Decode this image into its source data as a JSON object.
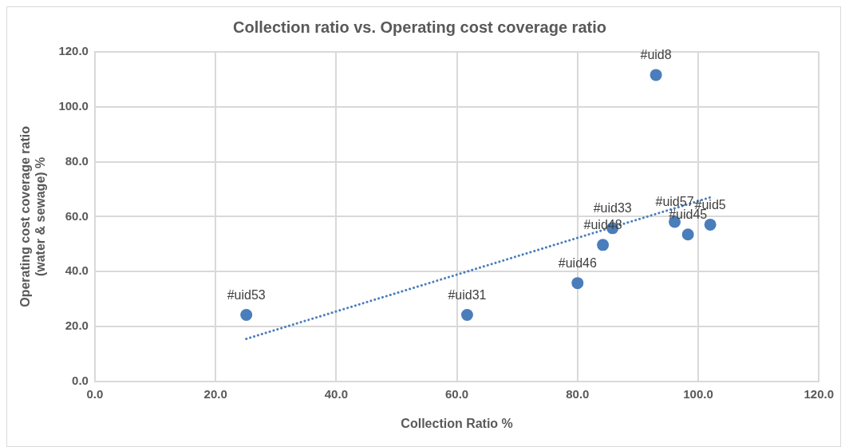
{
  "chart_data": {
    "type": "scatter",
    "title": "Collection ratio vs. Operating cost coverage ratio",
    "xlabel": "Collection Ratio %",
    "ylabel": "Operating cost coverage ratio (water & sewage) %",
    "xlim": [
      0,
      120
    ],
    "xticks": [
      {
        "value": 0,
        "label": "0.0"
      },
      {
        "value": 20,
        "label": "20.0"
      },
      {
        "value": 40,
        "label": "40.0"
      },
      {
        "value": 60,
        "label": "60.0"
      },
      {
        "value": 80,
        "label": "80.0"
      },
      {
        "value": 100,
        "label": "100.0"
      },
      {
        "value": 120,
        "label": "120.0"
      }
    ],
    "ylim": [
      0,
      120
    ],
    "yticks": [
      {
        "value": 0,
        "label": "0.0"
      },
      {
        "value": 20,
        "label": "20.0"
      },
      {
        "value": 40,
        "label": "40.0"
      },
      {
        "value": 60,
        "label": "60.0"
      },
      {
        "value": 80,
        "label": "80.0"
      },
      {
        "value": 100,
        "label": "100.0"
      },
      {
        "value": 120,
        "label": "120.0"
      }
    ],
    "grid": true,
    "legend": false,
    "series": [
      {
        "color": "#4a7ebb",
        "marker": "circle",
        "x": [
          25.1,
          61.7,
          80.0,
          84.2,
          85.8,
          96.1,
          98.3,
          102.0,
          93.0
        ],
        "values": [
          24.2,
          24.2,
          35.8,
          49.7,
          55.8,
          58.1,
          53.5,
          57.1,
          111.6
        ]
      },
      {
        "type": "line",
        "color": "#4a7ebb",
        "marker": "none",
        "line_style": "dotted",
        "x": [
          25.1,
          102.0
        ],
        "values": [
          15.5,
          67.0
        ]
      }
    ],
    "annotations": [
      {
        "text": "#uid53",
        "x": 25.1,
        "y": 24.2
      },
      {
        "text": "#uid31",
        "x": 61.7,
        "y": 24.2
      },
      {
        "text": "#uid46",
        "x": 80.0,
        "y": 35.8
      },
      {
        "text": "#uid48",
        "x": 84.2,
        "y": 49.7
      },
      {
        "text": "#uid33",
        "x": 85.8,
        "y": 55.8
      },
      {
        "text": "#uid57",
        "x": 96.1,
        "y": 58.1
      },
      {
        "text": "#uid45",
        "x": 98.3,
        "y": 53.5
      },
      {
        "text": "#uid5",
        "x": 102.0,
        "y": 57.1
      },
      {
        "text": "#uid8",
        "x": 93.0,
        "y": 111.6
      }
    ]
  }
}
